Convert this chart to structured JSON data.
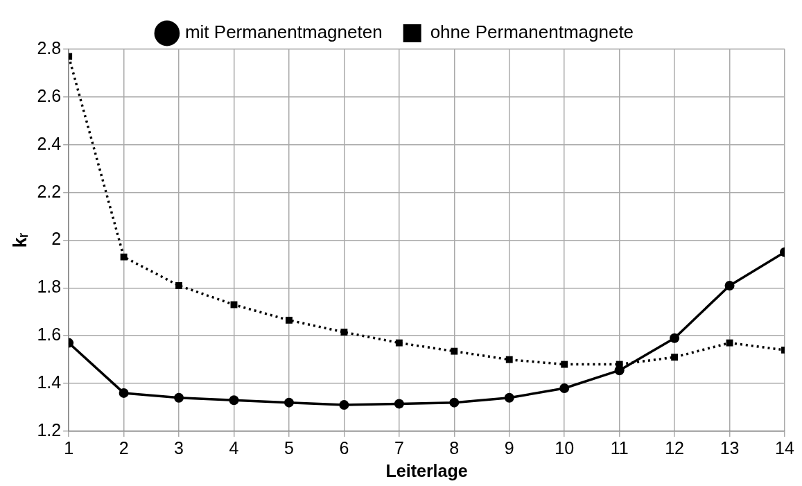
{
  "chart_data": {
    "type": "line",
    "xlabel": "Leiterlage",
    "ylabel": "kᵣ",
    "x": [
      1,
      2,
      3,
      4,
      5,
      6,
      7,
      8,
      9,
      10,
      11,
      12,
      13,
      14
    ],
    "series": [
      {
        "name": "mit Permanentmagneten",
        "color": "#000000",
        "marker": "circle",
        "line_style": "solid",
        "values": [
          1.57,
          1.36,
          1.34,
          1.33,
          1.32,
          1.31,
          1.315,
          1.32,
          1.34,
          1.38,
          1.455,
          1.59,
          1.81,
          1.95
        ]
      },
      {
        "name": "ohne Permanentmagnete",
        "color": "#000000",
        "marker": "square",
        "line_style": "dotted",
        "values": [
          2.77,
          1.93,
          1.81,
          1.73,
          1.665,
          1.615,
          1.57,
          1.535,
          1.5,
          1.48,
          1.48,
          1.51,
          1.57,
          1.54
        ]
      }
    ],
    "xlim": [
      1,
      14
    ],
    "xticks": [
      1,
      2,
      3,
      4,
      5,
      6,
      7,
      8,
      9,
      10,
      11,
      12,
      13,
      14
    ],
    "ylim": [
      1.2,
      2.8
    ],
    "yticks": [
      1.2,
      1.4,
      1.6,
      1.8,
      2.0,
      2.2,
      2.4,
      2.6,
      2.8
    ],
    "grid": true,
    "legend": "top"
  }
}
